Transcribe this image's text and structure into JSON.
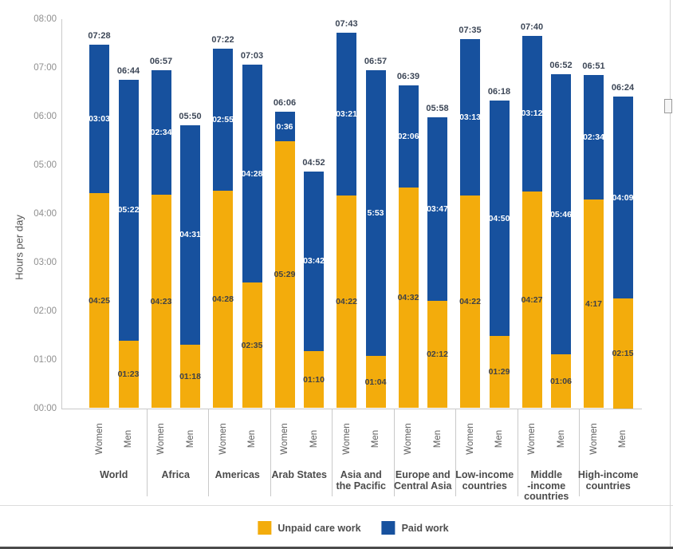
{
  "chart_data": {
    "type": "bar",
    "stacked": true,
    "ylabel": "Hours per day",
    "y_ticks": [
      "00:00",
      "01:00",
      "02:00",
      "03:00",
      "04:00",
      "05:00",
      "06:00",
      "07:00",
      "08:00"
    ],
    "ylim_hours": [
      0,
      8
    ],
    "grid": false,
    "legend_position": "bottom",
    "gender_labels": {
      "women": "Women",
      "men": "Men"
    },
    "legend": [
      {
        "key": "unpaid",
        "label": "Unpaid care work",
        "color": "#F3AC0C"
      },
      {
        "key": "paid",
        "label": "Paid work",
        "color": "#17519E"
      }
    ],
    "groups": [
      {
        "label_lines": [
          "World"
        ],
        "women": {
          "unpaid": "04:25",
          "paid": "03:03",
          "total": "07:28"
        },
        "men": {
          "unpaid": "01:23",
          "paid": "05:22",
          "total": "06:44"
        }
      },
      {
        "label_lines": [
          "Africa"
        ],
        "women": {
          "unpaid": "04:23",
          "paid": "02:34",
          "total": "06:57"
        },
        "men": {
          "unpaid": "01:18",
          "paid": "04:31",
          "total": "05:50"
        }
      },
      {
        "label_lines": [
          "Americas"
        ],
        "women": {
          "unpaid": "04:28",
          "paid": "02:55",
          "total": "07:22"
        },
        "men": {
          "unpaid": "02:35",
          "paid": "04:28",
          "total": "07:03"
        }
      },
      {
        "label_lines": [
          "Arab States"
        ],
        "women": {
          "unpaid": "05:29",
          "paid": "0:36",
          "total": "06:06"
        },
        "men": {
          "unpaid": "01:10",
          "paid": "03:42",
          "total": "04:52"
        }
      },
      {
        "label_lines": [
          "Asia and",
          "the Pacific"
        ],
        "women": {
          "unpaid": "04:22",
          "paid": "03:21",
          "total": "07:43"
        },
        "men": {
          "unpaid": "01:04",
          "paid": "5:53",
          "total": "06:57"
        }
      },
      {
        "label_lines": [
          "Europe and",
          "Central Asia"
        ],
        "women": {
          "unpaid": "04:32",
          "paid": "02:06",
          "total": "06:39"
        },
        "men": {
          "unpaid": "02:12",
          "paid": "03:47",
          "total": "05:58"
        }
      },
      {
        "label_lines": [
          "Low-income",
          "countries"
        ],
        "women": {
          "unpaid": "04:22",
          "paid": "03:13",
          "total": "07:35"
        },
        "men": {
          "unpaid": "01:29",
          "paid": "04:50",
          "total": "06:18"
        }
      },
      {
        "label_lines": [
          "Middle",
          "-income",
          "countries"
        ],
        "women": {
          "unpaid": "04:27",
          "paid": "03:12",
          "total": "07:40"
        },
        "men": {
          "unpaid": "01:06",
          "paid": "05:46",
          "total": "06:52"
        }
      },
      {
        "label_lines": [
          "High-income",
          "countries"
        ],
        "women": {
          "unpaid": "4:17",
          "paid": "02:34",
          "total": "06:51"
        },
        "men": {
          "unpaid": "02:15",
          "paid": "04:09",
          "total": "06:24"
        }
      }
    ]
  },
  "palette": {
    "unpaid_fill": "#F3AC0C",
    "paid_fill": "#17519E",
    "paid_label_text": "#FFFFFF",
    "unpaid_label_text": "#3F4147",
    "total_label_text": "#3D4757",
    "axis_line": "#C9C9C9",
    "tick_text": "#8F8F8F",
    "group_text": "#4B4B4B"
  }
}
